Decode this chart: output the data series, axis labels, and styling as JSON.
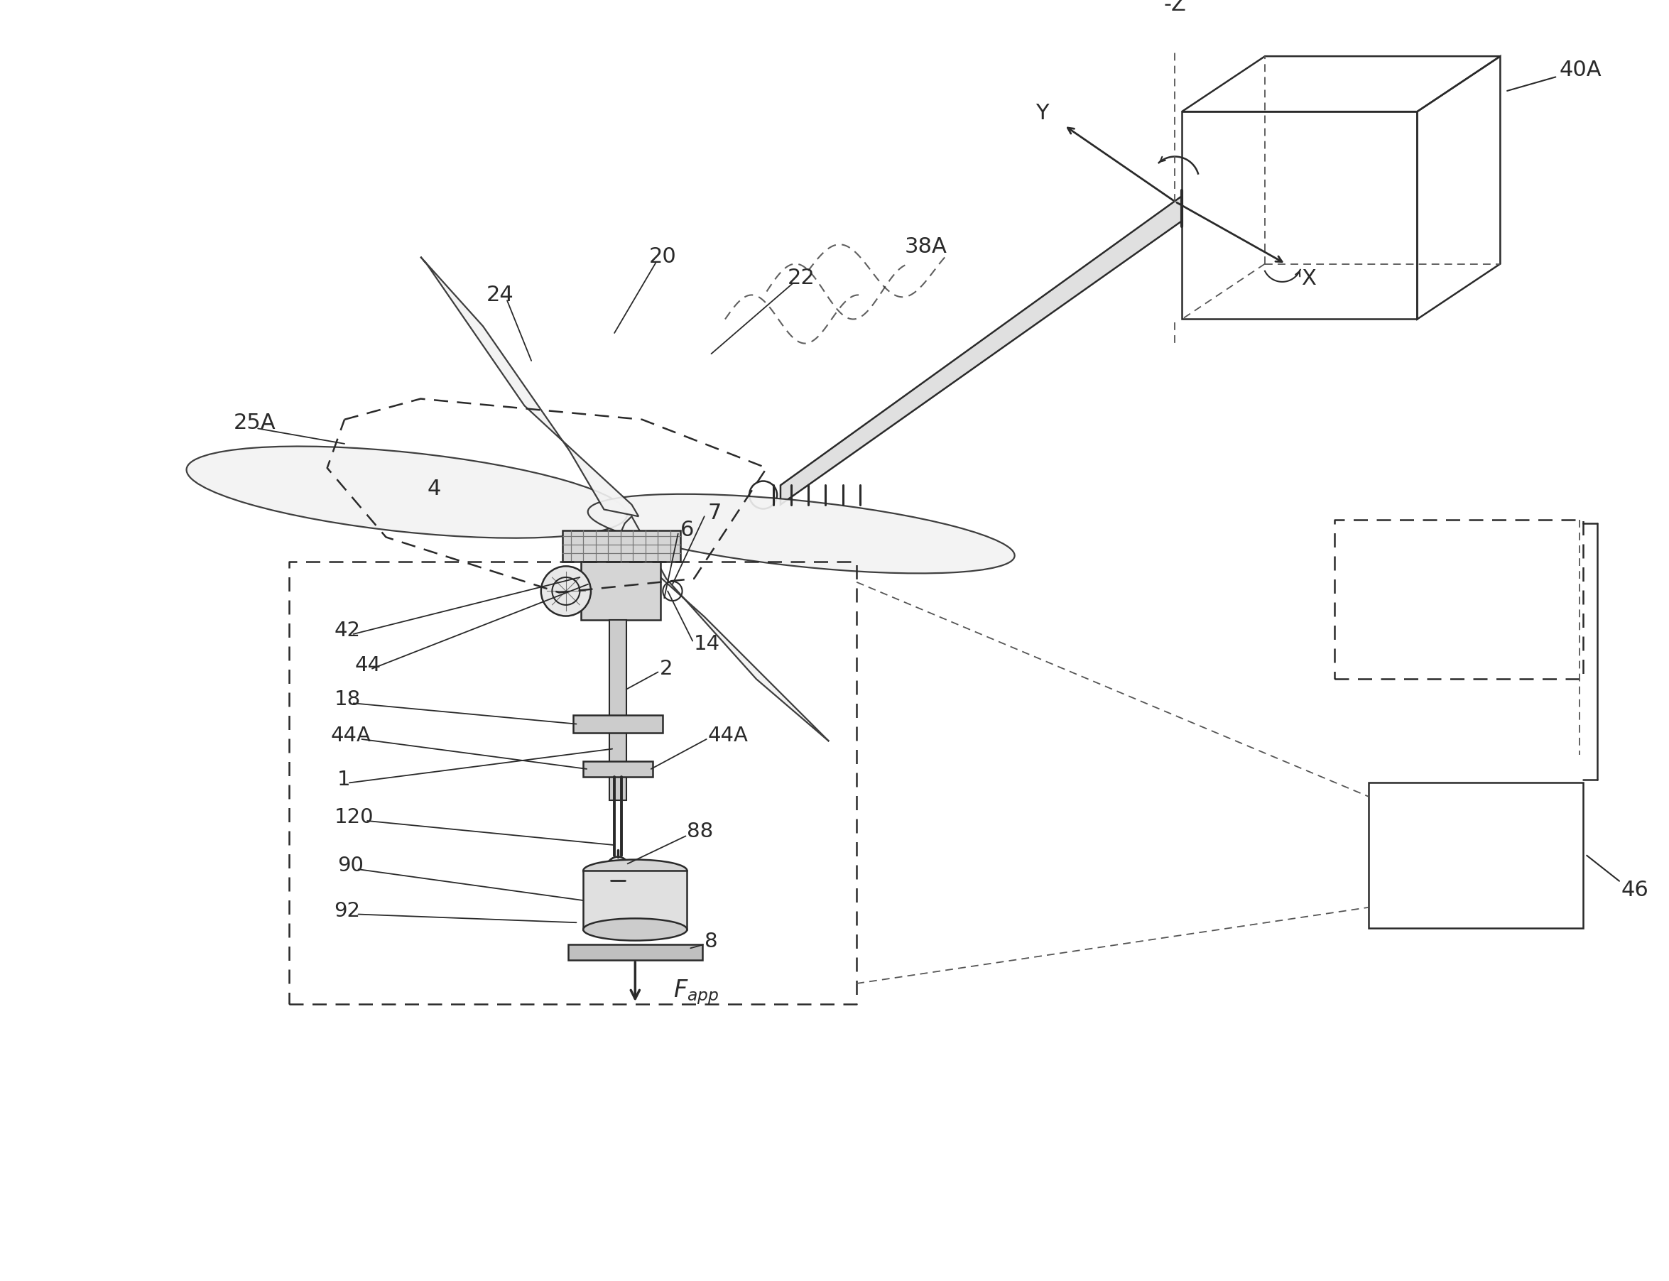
{
  "bg_color": "#ffffff",
  "line_color": "#2a2a2a",
  "dashed_color": "#555555",
  "light_gray": "#aaaaaa",
  "title": "",
  "labels": {
    "neg_z": "-Z",
    "y_axis": "Y",
    "x_axis": "X",
    "label_40A": "40A",
    "label_38A": "38A",
    "label_25A": "25A",
    "label_24": "24",
    "label_20": "20",
    "label_22": "22",
    "label_4": "4",
    "label_6": "6",
    "label_7": "7",
    "label_2": "2",
    "label_14": "14",
    "label_42": "42",
    "label_44": "44",
    "label_44A_left": "44A",
    "label_44A_right": "44A",
    "label_18": "18",
    "label_1": "1",
    "label_120": "120",
    "label_90": "90",
    "label_92": "92",
    "label_88": "88",
    "label_8": "8",
    "label_46": "46",
    "label_Fapp": "F_app"
  }
}
